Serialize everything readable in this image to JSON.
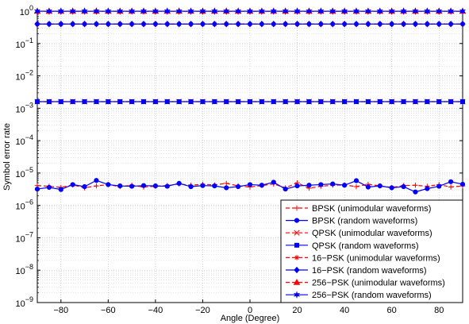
{
  "chart_data": {
    "type": "line",
    "xlabel": "Angle (Degree)",
    "ylabel": "Symbol error rate",
    "xlim": [
      -90,
      90
    ],
    "ylim_exponent": [
      -9,
      0
    ],
    "y_scale": "log",
    "grid": true,
    "legend_position": "bottom-right",
    "x_ticks": [
      -80,
      -60,
      -40,
      -20,
      0,
      20,
      40,
      60,
      80
    ],
    "x_tick_labels": [
      "−80",
      "−60",
      "−40",
      "−20",
      "0",
      "20",
      "40",
      "60",
      "80"
    ],
    "y_ticks": [
      {
        "base": "10",
        "exp": "0",
        "value": 1
      },
      {
        "base": "10",
        "exp": "−1",
        "value": 0.1
      },
      {
        "base": "10",
        "exp": "−2",
        "value": 0.01
      },
      {
        "base": "10",
        "exp": "−3",
        "value": 0.001
      },
      {
        "base": "10",
        "exp": "−4",
        "value": 0.0001
      },
      {
        "base": "10",
        "exp": "−5",
        "value": 1e-05
      },
      {
        "base": "10",
        "exp": "−6",
        "value": 1e-06
      },
      {
        "base": "10",
        "exp": "−7",
        "value": 1e-07
      },
      {
        "base": "10",
        "exp": "−8",
        "value": 1e-08
      },
      {
        "base": "10",
        "exp": "−9",
        "value": 1e-09
      }
    ],
    "x": [
      -90,
      -85,
      -80,
      -75,
      -70,
      -65,
      -60,
      -55,
      -50,
      -45,
      -40,
      -35,
      -30,
      -25,
      -20,
      -15,
      -10,
      -5,
      0,
      5,
      10,
      15,
      20,
      25,
      30,
      35,
      40,
      45,
      50,
      55,
      60,
      65,
      70,
      75,
      80,
      85,
      90
    ],
    "series": [
      {
        "name": "BPSK (unimodular waveforms)",
        "color": "#ff0000",
        "dash": "5,3",
        "marker": "plus",
        "values": [
          4.1e-06,
          3.9e-06,
          3.6e-06,
          4.3e-06,
          3.5e-06,
          4e-06,
          4.4e-06,
          3.8e-06,
          4.2e-06,
          3.7e-06,
          3.9e-06,
          4.1e-06,
          4.6e-06,
          4.2e-06,
          4.5e-06,
          4.3e-06,
          4.8e-06,
          4e-06,
          3.7e-06,
          4.1e-06,
          4.6e-06,
          3.5e-06,
          5e-06,
          3.4e-06,
          3.9e-06,
          4.2e-06,
          4.3e-06,
          3.8e-06,
          4.5e-06,
          4e-06,
          3.6e-06,
          4.1e-06,
          4.2e-06,
          3.9e-06,
          4.4e-06,
          3.7e-06,
          4e-06
        ]
      },
      {
        "name": "BPSK (random waveforms)",
        "color": "#0000ff",
        "dash": "",
        "marker": "circle",
        "values": [
          3.2e-06,
          3.6e-06,
          3.1e-06,
          4.4e-06,
          3.8e-06,
          5.9e-06,
          4.4e-06,
          4e-06,
          3.9e-06,
          4.1e-06,
          4e-06,
          3.9e-06,
          4.8e-06,
          3.8e-06,
          4.1e-06,
          4e-06,
          3.5e-06,
          3.8e-06,
          4.4e-06,
          4.2e-06,
          5.2e-06,
          3.2e-06,
          4e-06,
          4.2e-06,
          4.4e-06,
          4.6e-06,
          4.2e-06,
          5.8e-06,
          3.7e-06,
          4e-06,
          3.5e-06,
          3.8e-06,
          2.6e-06,
          3.3e-06,
          3.9e-06,
          5.4e-06,
          4.5e-06
        ]
      },
      {
        "name": "QPSK (unimodular waveforms)",
        "color": "#ff0000",
        "dash": "5,3",
        "marker": "x",
        "values": [
          0.0016,
          0.0016,
          0.0016,
          0.0016,
          0.0016,
          0.0016,
          0.0016,
          0.0016,
          0.0016,
          0.0016,
          0.0016,
          0.0016,
          0.0016,
          0.0016,
          0.0016,
          0.0016,
          0.0016,
          0.0016,
          0.0016,
          0.0016,
          0.0016,
          0.0016,
          0.0016,
          0.0016,
          0.0016,
          0.0016,
          0.0016,
          0.0016,
          0.0016,
          0.0016,
          0.0016,
          0.0016,
          0.0016,
          0.0016,
          0.0016,
          0.0016,
          0.0016
        ]
      },
      {
        "name": "QPSK (random waveforms)",
        "color": "#0000ff",
        "dash": "",
        "marker": "square",
        "values": [
          0.0016,
          0.0016,
          0.0016,
          0.0016,
          0.0016,
          0.0016,
          0.0016,
          0.0016,
          0.0016,
          0.0016,
          0.0016,
          0.0016,
          0.0016,
          0.0016,
          0.0016,
          0.0016,
          0.0016,
          0.0016,
          0.0016,
          0.0016,
          0.0016,
          0.0016,
          0.0016,
          0.0016,
          0.0016,
          0.0016,
          0.0016,
          0.0016,
          0.0016,
          0.0016,
          0.0016,
          0.0016,
          0.0016,
          0.0016,
          0.0016,
          0.0016,
          0.0016
        ]
      },
      {
        "name": "16−PSK (unimodular waveforms)",
        "color": "#ff0000",
        "dash": "5,3",
        "marker": "star",
        "values": [
          0.4,
          0.4,
          0.4,
          0.4,
          0.4,
          0.4,
          0.4,
          0.4,
          0.4,
          0.4,
          0.4,
          0.4,
          0.4,
          0.4,
          0.4,
          0.4,
          0.4,
          0.4,
          0.4,
          0.4,
          0.4,
          0.4,
          0.4,
          0.4,
          0.4,
          0.4,
          0.4,
          0.4,
          0.4,
          0.4,
          0.4,
          0.4,
          0.4,
          0.4,
          0.4,
          0.4,
          0.4
        ]
      },
      {
        "name": "16−PSK (random waveforms)",
        "color": "#0000ff",
        "dash": "",
        "marker": "diamond",
        "values": [
          0.4,
          0.4,
          0.4,
          0.4,
          0.4,
          0.4,
          0.4,
          0.4,
          0.4,
          0.4,
          0.4,
          0.4,
          0.4,
          0.4,
          0.4,
          0.4,
          0.4,
          0.4,
          0.4,
          0.4,
          0.4,
          0.4,
          0.4,
          0.4,
          0.4,
          0.4,
          0.4,
          0.4,
          0.4,
          0.4,
          0.4,
          0.4,
          0.4,
          0.4,
          0.4,
          0.4,
          0.4
        ]
      },
      {
        "name": "256−PSK (unimodular waveforms)",
        "color": "#ff0000",
        "dash": "5,3",
        "marker": "triangle",
        "values": [
          0.99,
          0.99,
          0.99,
          0.99,
          0.99,
          0.99,
          0.99,
          0.99,
          0.99,
          0.99,
          0.99,
          0.99,
          0.99,
          0.99,
          0.99,
          0.99,
          0.99,
          0.99,
          0.99,
          0.99,
          0.99,
          0.99,
          0.99,
          0.99,
          0.99,
          0.99,
          0.99,
          0.99,
          0.99,
          0.99,
          0.99,
          0.99,
          0.99,
          0.99,
          0.99,
          0.99,
          0.99
        ]
      },
      {
        "name": "256−PSK (random waveforms)",
        "color": "#0000ff",
        "dash": "",
        "marker": "hexstar",
        "values": [
          0.99,
          0.99,
          0.99,
          0.99,
          0.99,
          0.99,
          0.99,
          0.99,
          0.99,
          0.99,
          0.99,
          0.99,
          0.99,
          0.99,
          0.99,
          0.99,
          0.99,
          0.99,
          0.99,
          0.99,
          0.99,
          0.99,
          0.99,
          0.99,
          0.99,
          0.99,
          0.99,
          0.99,
          0.99,
          0.99,
          0.99,
          0.99,
          0.99,
          0.99,
          0.99,
          0.99,
          0.99
        ]
      }
    ]
  }
}
